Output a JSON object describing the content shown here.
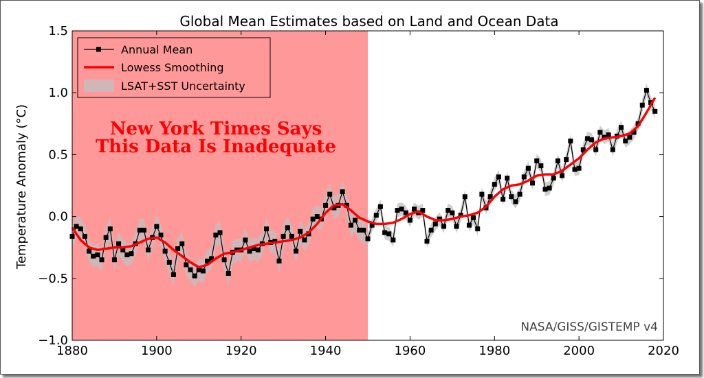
{
  "chart_data": {
    "type": "line",
    "title": "Global Mean Estimates based on Land and Ocean Data",
    "xlabel": "",
    "ylabel": "Temperature Anomaly (°C)",
    "xlim": [
      1880,
      2020
    ],
    "ylim": [
      -1.0,
      1.5
    ],
    "xticks": [
      "1880",
      "1900",
      "1920",
      "1940",
      "1960",
      "1980",
      "2000",
      "2020"
    ],
    "yticks": [
      "−1.0",
      "−0.5",
      "0.0",
      "0.5",
      "1.0",
      "1.5"
    ],
    "grid": false,
    "legend_placement": "top-left",
    "legend": [
      {
        "label": "Annual Mean",
        "kind": "line-marker",
        "color": "#000000"
      },
      {
        "label": "Lowess Smoothing",
        "kind": "line",
        "color": "#ff0000"
      },
      {
        "label": "LSAT+SST Uncertainty",
        "kind": "band",
        "color": "#c0c0c0"
      }
    ],
    "annotations": {
      "overlay_text_1": "New York Times Says",
      "overlay_text_2": "This Data Is Inadequate",
      "overlay_color": "#ff0000",
      "shaded_region_color": "#ff8080",
      "shaded_region_x": [
        1880,
        1950
      ],
      "source": "NASA/GISS/GISTEMP v4"
    },
    "series": [
      {
        "name": "Annual Mean",
        "color": "#000000",
        "x": [
          1880,
          1881,
          1882,
          1883,
          1884,
          1885,
          1886,
          1887,
          1888,
          1889,
          1890,
          1891,
          1892,
          1893,
          1894,
          1895,
          1896,
          1897,
          1898,
          1899,
          1900,
          1901,
          1902,
          1903,
          1904,
          1905,
          1906,
          1907,
          1908,
          1909,
          1910,
          1911,
          1912,
          1913,
          1914,
          1915,
          1916,
          1917,
          1918,
          1919,
          1920,
          1921,
          1922,
          1923,
          1924,
          1925,
          1926,
          1927,
          1928,
          1929,
          1930,
          1931,
          1932,
          1933,
          1934,
          1935,
          1936,
          1937,
          1938,
          1939,
          1940,
          1941,
          1942,
          1943,
          1944,
          1945,
          1946,
          1947,
          1948,
          1949,
          1950,
          1951,
          1952,
          1953,
          1954,
          1955,
          1956,
          1957,
          1958,
          1959,
          1960,
          1961,
          1962,
          1963,
          1964,
          1965,
          1966,
          1967,
          1968,
          1969,
          1970,
          1971,
          1972,
          1973,
          1974,
          1975,
          1976,
          1977,
          1978,
          1979,
          1980,
          1981,
          1982,
          1983,
          1984,
          1985,
          1986,
          1987,
          1988,
          1989,
          1990,
          1991,
          1992,
          1993,
          1994,
          1995,
          1996,
          1997,
          1998,
          1999,
          2000,
          2001,
          2002,
          2003,
          2004,
          2005,
          2006,
          2007,
          2008,
          2009,
          2010,
          2011,
          2012,
          2013,
          2014,
          2015,
          2016,
          2017,
          2018
        ],
        "values": [
          -0.16,
          -0.08,
          -0.1,
          -0.16,
          -0.28,
          -0.32,
          -0.31,
          -0.35,
          -0.17,
          -0.1,
          -0.35,
          -0.22,
          -0.27,
          -0.31,
          -0.3,
          -0.22,
          -0.11,
          -0.11,
          -0.27,
          -0.17,
          -0.08,
          -0.15,
          -0.28,
          -0.37,
          -0.47,
          -0.26,
          -0.22,
          -0.39,
          -0.43,
          -0.48,
          -0.43,
          -0.44,
          -0.36,
          -0.34,
          -0.15,
          -0.13,
          -0.35,
          -0.46,
          -0.29,
          -0.27,
          -0.27,
          -0.19,
          -0.28,
          -0.26,
          -0.27,
          -0.22,
          -0.1,
          -0.21,
          -0.2,
          -0.36,
          -0.16,
          -0.09,
          -0.16,
          -0.28,
          -0.12,
          -0.19,
          -0.14,
          -0.02,
          -0.0,
          -0.02,
          0.09,
          0.18,
          0.07,
          0.09,
          0.2,
          0.09,
          -0.07,
          -0.03,
          -0.11,
          -0.11,
          -0.18,
          -0.07,
          0.01,
          0.08,
          -0.13,
          -0.14,
          -0.19,
          0.05,
          0.06,
          0.03,
          -0.03,
          0.06,
          0.03,
          0.05,
          -0.2,
          -0.11,
          -0.06,
          -0.02,
          -0.08,
          0.05,
          0.03,
          -0.08,
          0.01,
          0.16,
          -0.07,
          -0.01,
          -0.1,
          0.18,
          0.07,
          0.16,
          0.26,
          0.32,
          0.14,
          0.31,
          0.16,
          0.12,
          0.18,
          0.32,
          0.39,
          0.27,
          0.45,
          0.41,
          0.22,
          0.23,
          0.31,
          0.45,
          0.33,
          0.46,
          0.61,
          0.38,
          0.39,
          0.54,
          0.63,
          0.62,
          0.54,
          0.68,
          0.64,
          0.66,
          0.54,
          0.65,
          0.72,
          0.61,
          0.64,
          0.68,
          0.75,
          0.9,
          1.02,
          0.92,
          0.85
        ]
      },
      {
        "name": "Lowess Smoothing",
        "color": "#ff0000",
        "x": [
          1880,
          1882,
          1884,
          1886,
          1888,
          1890,
          1892,
          1894,
          1896,
          1898,
          1900,
          1902,
          1904,
          1906,
          1908,
          1910,
          1912,
          1914,
          1916,
          1918,
          1920,
          1922,
          1924,
          1926,
          1928,
          1930,
          1932,
          1934,
          1936,
          1938,
          1940,
          1942,
          1944,
          1946,
          1948,
          1950,
          1952,
          1954,
          1956,
          1958,
          1960,
          1962,
          1964,
          1966,
          1968,
          1970,
          1972,
          1974,
          1976,
          1978,
          1980,
          1982,
          1984,
          1986,
          1988,
          1990,
          1992,
          1994,
          1996,
          1998,
          2000,
          2002,
          2004,
          2006,
          2008,
          2010,
          2012,
          2014,
          2016,
          2018
        ],
        "values": [
          -0.09,
          -0.19,
          -0.25,
          -0.27,
          -0.26,
          -0.25,
          -0.25,
          -0.24,
          -0.21,
          -0.18,
          -0.17,
          -0.21,
          -0.27,
          -0.32,
          -0.37,
          -0.41,
          -0.39,
          -0.34,
          -0.3,
          -0.29,
          -0.27,
          -0.25,
          -0.23,
          -0.22,
          -0.21,
          -0.2,
          -0.19,
          -0.17,
          -0.13,
          -0.06,
          0.03,
          0.09,
          0.1,
          0.05,
          -0.01,
          -0.04,
          -0.06,
          -0.06,
          -0.05,
          -0.02,
          0.02,
          0.04,
          0.0,
          -0.03,
          -0.03,
          -0.02,
          0.0,
          0.01,
          0.03,
          0.08,
          0.16,
          0.22,
          0.25,
          0.26,
          0.29,
          0.33,
          0.34,
          0.34,
          0.37,
          0.42,
          0.47,
          0.54,
          0.6,
          0.63,
          0.64,
          0.65,
          0.67,
          0.73,
          0.84,
          0.96
        ]
      }
    ]
  }
}
